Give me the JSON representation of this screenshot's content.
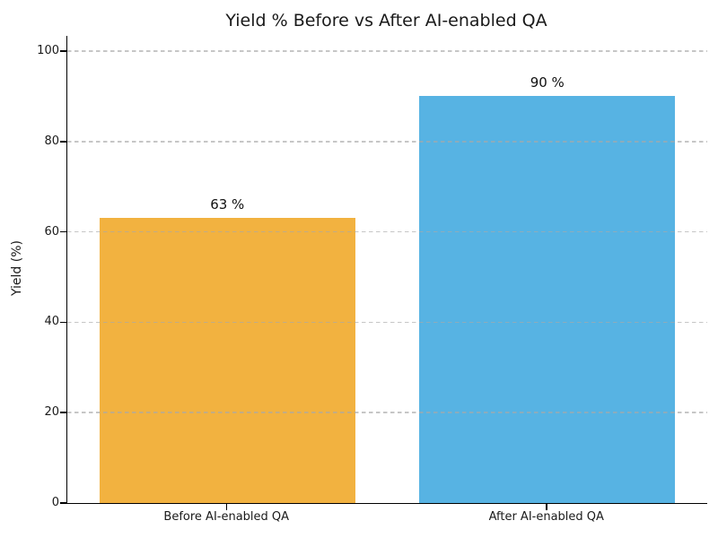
{
  "chart_data": {
    "type": "bar",
    "title": "Yield % Before vs After AI-enabled QA",
    "categories": [
      "Before AI-enabled QA",
      "After AI-enabled QA"
    ],
    "values": [
      63,
      90
    ],
    "value_labels": [
      "63 %",
      "90 %"
    ],
    "bar_colors": [
      "#F2B240",
      "#57B3E3"
    ],
    "xlabel": "",
    "ylabel": "Yield (%)",
    "ylim": [
      0,
      103.5
    ],
    "yticks": [
      0,
      20,
      40,
      60,
      80,
      100
    ],
    "grid": {
      "axis": "y",
      "style": "dashed",
      "color": "#cccccc",
      "drawn_over_bars": true
    },
    "legend_position": "none",
    "background_color": "#ffffff",
    "axis_color": "#000000",
    "text_color": "#1a1a1a"
  }
}
